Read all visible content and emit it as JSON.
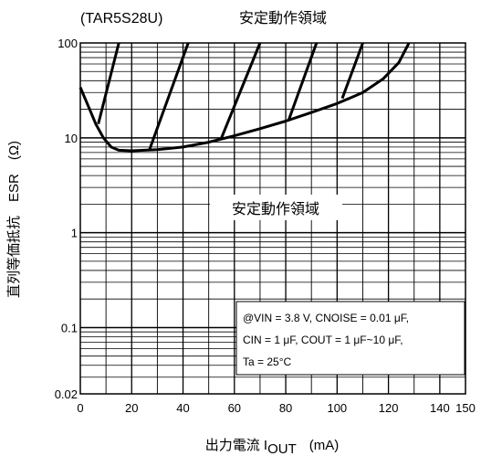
{
  "chart_data": {
    "type": "line",
    "title_left": "(TAR5S28U)",
    "title_right": "安定動作領域",
    "ylabel": "直列等価抵抗　ESR　(Ω)",
    "xlabel": {
      "main": "出力電流 I",
      "sub": "OUT",
      "unit": "(mA)"
    },
    "x_ticks": [
      "0",
      "20",
      "40",
      "60",
      "80",
      "100",
      "120",
      "140",
      "150"
    ],
    "y_ticks": [
      "100",
      "10",
      "1",
      "0.1",
      "0.02"
    ],
    "xlim": [
      0,
      150
    ],
    "ylim": [
      0.02,
      100
    ],
    "y_scale": "log",
    "grid": true,
    "region_label": "安定動作領域",
    "conditions": [
      "@VIN = 3.8 V, CNOISE = 0.01 μF,",
      "CIN = 1 μF, COUT = 1 μF~10 μF,",
      "Ta = 25°C"
    ],
    "series": [
      {
        "points": [
          [
            0,
            34
          ],
          [
            3,
            22
          ],
          [
            6,
            14
          ],
          [
            9,
            10
          ],
          [
            12,
            8
          ],
          [
            15,
            7.4
          ],
          [
            20,
            7.3
          ],
          [
            30,
            7.5
          ],
          [
            40,
            8
          ],
          [
            50,
            9
          ],
          [
            60,
            10.5
          ],
          [
            70,
            12.5
          ],
          [
            80,
            15
          ],
          [
            90,
            18.5
          ],
          [
            100,
            23
          ],
          [
            110,
            30
          ],
          [
            118,
            42
          ],
          [
            124,
            62
          ],
          [
            128,
            100
          ]
        ]
      },
      {
        "points": [
          [
            7,
            14
          ],
          [
            15,
            100
          ]
        ]
      },
      {
        "points": [
          [
            27,
            7.6
          ],
          [
            42,
            100
          ]
        ]
      },
      {
        "points": [
          [
            55,
            10
          ],
          [
            70,
            100
          ]
        ]
      },
      {
        "points": [
          [
            81,
            15
          ],
          [
            92,
            100
          ]
        ]
      },
      {
        "points": [
          [
            102,
            26
          ],
          [
            110,
            100
          ]
        ]
      }
    ]
  }
}
